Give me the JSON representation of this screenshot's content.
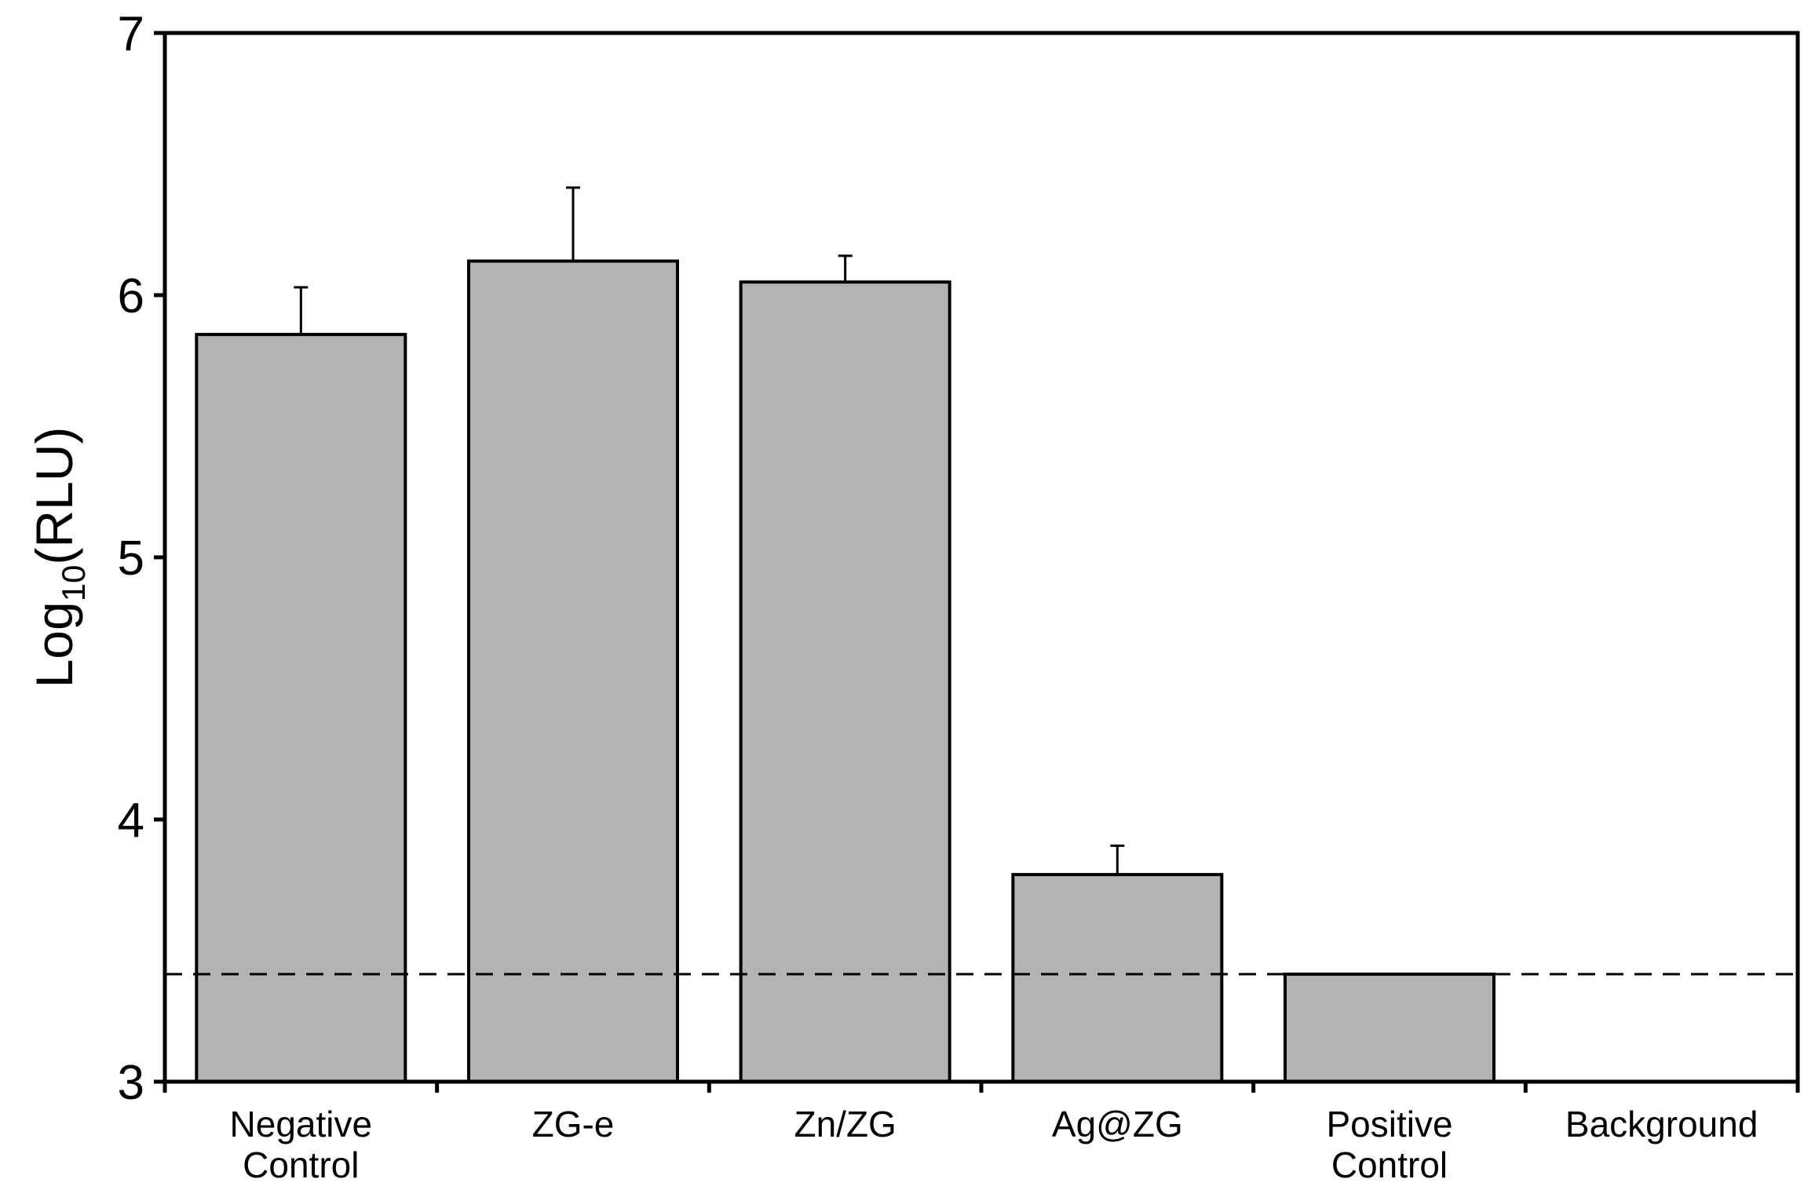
{
  "chart_data": {
    "type": "bar",
    "title": "",
    "xlabel": "",
    "ylabel": {
      "base": "Log",
      "subscript": "10",
      "rest": "(RLU)"
    },
    "categories": [
      [
        "Negative",
        "Control"
      ],
      [
        "ZG-e"
      ],
      [
        "Zn/ZG"
      ],
      [
        "Ag@ZG"
      ],
      [
        "Positive",
        "Control"
      ],
      [
        "Background"
      ]
    ],
    "series": [
      {
        "values": [
          5.85,
          6.13,
          6.05,
          3.79,
          3.41,
          null
        ],
        "errors": [
          0.18,
          0.28,
          0.1,
          0.11,
          0.0,
          null
        ]
      }
    ],
    "ylim": [
      3,
      7
    ],
    "yticks": [
      3,
      4,
      5,
      6,
      7
    ],
    "reference_line": {
      "y": 3.41,
      "style": "dashed"
    },
    "grid": false,
    "legend": "none",
    "colors": {
      "bar_fill": "#b3b3b3",
      "bar_stroke": "#000000",
      "axis": "#000000",
      "background": "#ffffff"
    }
  }
}
